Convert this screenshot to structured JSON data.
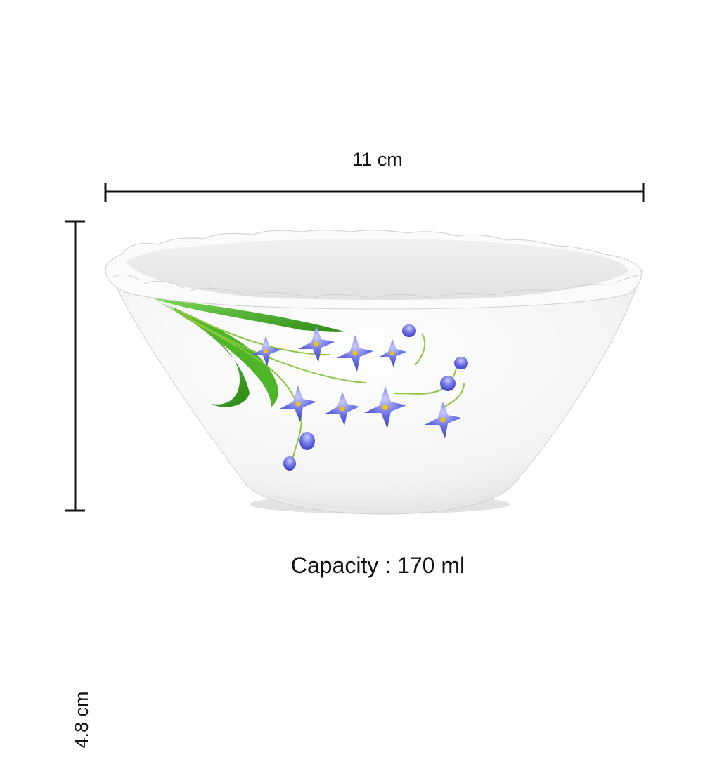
{
  "dimensions": {
    "width_label": "11 cm",
    "height_label": "4.8 cm"
  },
  "capacity_label": "Capacity : 170 ml",
  "colors": {
    "line": "#111111",
    "bowl": "#ffffff",
    "flower": "#5a5fd8",
    "leaf": "#3ea41f"
  }
}
